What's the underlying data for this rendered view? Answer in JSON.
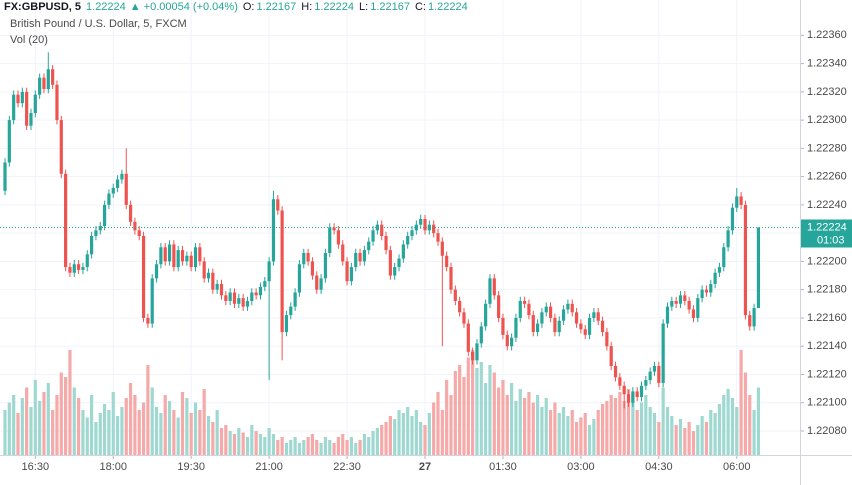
{
  "header": {
    "symbol": "FX:GBPUSD, 5",
    "last": "1.22224",
    "change": "+0.00054 (+0.04%)",
    "o_label": "O:",
    "o_value": "1.22167",
    "h_label": "H:",
    "h_value": "1.22224",
    "l_label": "L:",
    "l_value": "1.22167",
    "c_label": "C:",
    "c_value": "1.22224"
  },
  "chart_data": {
    "type": "candlestick",
    "title": "British Pound / U.S. Dollar, 5, FXCM",
    "volume_label": "Vol (20)",
    "price_label": "1.22224",
    "countdown": "01:03",
    "current_price": 1.22224,
    "up_color": "#26a69a",
    "down_color": "#ef5350",
    "up_volume_color": "#9fd8d1",
    "down_volume_color": "#f5a9a8",
    "grid": true,
    "categories": [
      null,
      null,
      null,
      null,
      null,
      null,
      null,
      "16:30",
      null,
      null,
      null,
      null,
      null,
      null,
      null,
      null,
      null,
      null,
      null,
      null,
      null,
      null,
      null,
      null,
      null,
      "18:00",
      null,
      null,
      null,
      null,
      null,
      null,
      null,
      null,
      null,
      null,
      null,
      null,
      null,
      null,
      null,
      null,
      null,
      "19:30",
      null,
      null,
      null,
      null,
      null,
      null,
      null,
      null,
      null,
      null,
      null,
      null,
      null,
      null,
      null,
      null,
      null,
      "21:00",
      null,
      null,
      null,
      null,
      null,
      null,
      null,
      null,
      null,
      null,
      null,
      null,
      null,
      null,
      null,
      null,
      null,
      "22:30",
      null,
      null,
      null,
      null,
      null,
      null,
      null,
      null,
      null,
      null,
      null,
      null,
      null,
      null,
      null,
      null,
      null,
      "27",
      null,
      null,
      null,
      null,
      null,
      null,
      null,
      null,
      null,
      null,
      null,
      null,
      null,
      null,
      null,
      null,
      null,
      "01:30",
      null,
      null,
      null,
      null,
      null,
      null,
      null,
      null,
      null,
      null,
      null,
      null,
      null,
      null,
      null,
      null,
      null,
      "03:00",
      null,
      null,
      null,
      null,
      null,
      null,
      null,
      null,
      null,
      null,
      null,
      null,
      null,
      null,
      null,
      null,
      null,
      "04:30",
      null,
      null,
      null,
      null,
      null,
      null,
      null,
      null,
      null,
      null,
      null,
      null,
      null,
      null,
      null,
      null,
      null,
      "06:00",
      null,
      null,
      null,
      null,
      null
    ],
    "open": [
      1.2225,
      1.2227,
      1.223,
      1.22318,
      1.22312,
      1.2232,
      1.22296,
      1.22305,
      1.22318,
      1.2233,
      1.22322,
      1.22336,
      1.22325,
      1.223,
      1.22262,
      1.22196,
      1.22192,
      1.22198,
      1.22194,
      1.22196,
      1.22205,
      1.22218,
      1.22222,
      1.22225,
      1.2224,
      1.22248,
      1.22252,
      1.22258,
      1.22262,
      1.2224,
      1.22228,
      1.22222,
      1.22218,
      1.2216,
      1.22156,
      1.22188,
      1.22198,
      1.2221,
      1.222,
      1.22212,
      1.22196,
      1.22208,
      1.222,
      1.22204,
      1.22196,
      1.2221,
      1.222,
      1.22188,
      1.22192,
      1.2218,
      1.22184,
      1.22176,
      1.22172,
      1.22178,
      1.2217,
      1.22174,
      1.22168,
      1.22172,
      1.22178,
      1.22176,
      1.22182,
      1.22186,
      1.222,
      1.22244,
      1.22236,
      1.2215,
      1.22162,
      1.22168,
      1.22178,
      1.22198,
      1.22206,
      1.222,
      1.2219,
      1.2218,
      1.22188,
      1.22206,
      1.22224,
      1.22222,
      1.22212,
      1.222,
      1.22186,
      1.22196,
      1.22206,
      1.222,
      1.22208,
      1.22214,
      1.22222,
      1.22226,
      1.22218,
      1.22208,
      1.2219,
      1.22196,
      1.22202,
      1.22212,
      1.22218,
      1.22222,
      1.22226,
      1.2223,
      1.22222,
      1.22226,
      1.2222,
      1.22214,
      1.22204,
      1.22196,
      1.2218,
      1.22172,
      1.22164,
      1.22156,
      1.22136,
      1.2213,
      1.22142,
      1.22154,
      1.2217,
      1.22188,
      1.22176,
      1.2216,
      1.22148,
      1.2214,
      1.22146,
      1.2216,
      1.22172,
      1.2217,
      1.22162,
      1.2215,
      1.22156,
      1.22164,
      1.22168,
      1.2216,
      1.2215,
      1.22158,
      1.22166,
      1.2217,
      1.22164,
      1.22156,
      1.22152,
      1.22148,
      1.2216,
      1.22164,
      1.22158,
      1.2215,
      1.2214,
      1.22126,
      1.22118,
      1.22112,
      1.22106,
      1.221,
      1.22108,
      1.22104,
      1.22112,
      1.22116,
      1.22122,
      1.22126,
      1.22114,
      1.22156,
      1.22168,
      1.22172,
      1.2217,
      1.22176,
      1.22172,
      1.22166,
      1.2216,
      1.22174,
      1.2218,
      1.22178,
      1.22184,
      1.22192,
      1.22196,
      1.2221,
      1.22222,
      1.22238,
      1.22246,
      1.2224,
      1.22162,
      1.22154,
      1.22167
    ],
    "high": [
      1.22273,
      1.22303,
      1.22321,
      1.22321,
      1.22323,
      1.22323,
      1.22308,
      1.22321,
      1.22333,
      1.22333,
      1.22348,
      1.22339,
      1.22328,
      1.22303,
      1.22265,
      1.22199,
      1.22201,
      1.22201,
      1.22199,
      1.22208,
      1.22221,
      1.22225,
      1.22228,
      1.22243,
      1.22251,
      1.22255,
      1.22261,
      1.22265,
      1.2228,
      1.22243,
      1.22231,
      1.22225,
      1.22221,
      1.22163,
      1.22191,
      1.22201,
      1.22213,
      1.22213,
      1.22215,
      1.22215,
      1.22211,
      1.22211,
      1.22207,
      1.22207,
      1.22213,
      1.22213,
      1.22203,
      1.22195,
      1.22195,
      1.22187,
      1.22187,
      1.22179,
      1.22181,
      1.22181,
      1.22177,
      1.22177,
      1.22175,
      1.22181,
      1.22181,
      1.22185,
      1.22189,
      1.22203,
      1.2225,
      1.22247,
      1.22239,
      1.22165,
      1.22171,
      1.22181,
      1.22201,
      1.22209,
      1.22209,
      1.22203,
      1.22193,
      1.22191,
      1.22209,
      1.22227,
      1.22227,
      1.22225,
      1.22215,
      1.22203,
      1.22199,
      1.22209,
      1.22209,
      1.22211,
      1.22217,
      1.22225,
      1.22229,
      1.22229,
      1.22221,
      1.22211,
      1.22199,
      1.22205,
      1.22215,
      1.22221,
      1.22225,
      1.22229,
      1.22233,
      1.22233,
      1.22229,
      1.22229,
      1.22223,
      1.22217,
      1.22207,
      1.22199,
      1.22183,
      1.22175,
      1.22167,
      1.22159,
      1.22139,
      1.22145,
      1.22157,
      1.22173,
      1.22191,
      1.22191,
      1.22179,
      1.22163,
      1.22151,
      1.22149,
      1.22163,
      1.22175,
      1.22175,
      1.22173,
      1.22165,
      1.22159,
      1.22167,
      1.22171,
      1.22171,
      1.22163,
      1.22161,
      1.22169,
      1.22173,
      1.22173,
      1.22167,
      1.22159,
      1.22155,
      1.22163,
      1.22167,
      1.22167,
      1.22161,
      1.22153,
      1.22143,
      1.22129,
      1.22121,
      1.22115,
      1.22109,
      1.22111,
      1.22111,
      1.22115,
      1.22119,
      1.22125,
      1.22129,
      1.22129,
      1.22159,
      1.22171,
      1.22175,
      1.22175,
      1.22179,
      1.22179,
      1.22175,
      1.22169,
      1.22177,
      1.22183,
      1.22183,
      1.22187,
      1.22195,
      1.22199,
      1.22213,
      1.22225,
      1.22241,
      1.22252,
      1.22249,
      1.22243,
      1.22165,
      1.2217,
      1.22224
    ],
    "low": [
      1.22247,
      1.22267,
      1.22297,
      1.22309,
      1.22309,
      1.22293,
      1.22293,
      1.22302,
      1.22315,
      1.22319,
      1.22319,
      1.22322,
      1.22297,
      1.22259,
      1.22193,
      1.22189,
      1.22189,
      1.22191,
      1.22191,
      1.22193,
      1.22202,
      1.22215,
      1.22219,
      1.22222,
      1.22237,
      1.22245,
      1.22249,
      1.22255,
      1.22237,
      1.22225,
      1.22219,
      1.22215,
      1.22157,
      1.22153,
      1.22153,
      1.22185,
      1.22195,
      1.22197,
      1.22197,
      1.22193,
      1.22193,
      1.22197,
      1.22197,
      1.22193,
      1.22193,
      1.22197,
      1.22185,
      1.22185,
      1.22177,
      1.22177,
      1.22173,
      1.22169,
      1.22169,
      1.22167,
      1.22167,
      1.22165,
      1.22165,
      1.22169,
      1.22173,
      1.22173,
      1.22179,
      1.22116,
      1.22197,
      1.22233,
      1.2213,
      1.22147,
      1.22159,
      1.22165,
      1.22175,
      1.22195,
      1.22197,
      1.22187,
      1.22177,
      1.22177,
      1.22185,
      1.22203,
      1.22219,
      1.22209,
      1.22197,
      1.22183,
      1.22183,
      1.22193,
      1.22197,
      1.22197,
      1.22205,
      1.22211,
      1.22219,
      1.22215,
      1.22205,
      1.22187,
      1.22187,
      1.22193,
      1.22199,
      1.22209,
      1.22215,
      1.22219,
      1.22223,
      1.22219,
      1.22219,
      1.22217,
      1.22211,
      1.2214,
      1.22193,
      1.22177,
      1.22169,
      1.22161,
      1.22153,
      1.22133,
      1.22127,
      1.22127,
      1.22139,
      1.22151,
      1.22167,
      1.22173,
      1.22157,
      1.22145,
      1.22137,
      1.22137,
      1.22143,
      1.22157,
      1.22167,
      1.22159,
      1.22147,
      1.22147,
      1.22153,
      1.22161,
      1.22157,
      1.22147,
      1.22147,
      1.22155,
      1.22163,
      1.22161,
      1.22153,
      1.22149,
      1.22145,
      1.22145,
      1.22157,
      1.22155,
      1.22147,
      1.22137,
      1.22123,
      1.22115,
      1.22109,
      1.22096,
      1.22097,
      1.22097,
      1.22101,
      1.22101,
      1.22109,
      1.22113,
      1.22119,
      1.22111,
      1.22111,
      1.22153,
      1.22165,
      1.22167,
      1.22167,
      1.22169,
      1.22163,
      1.22157,
      1.22157,
      1.22171,
      1.22175,
      1.22175,
      1.22181,
      1.22189,
      1.22193,
      1.22207,
      1.22219,
      1.22235,
      1.22237,
      1.22159,
      1.22151,
      1.22151,
      1.22167
    ],
    "close": [
      1.2227,
      1.223,
      1.22318,
      1.22312,
      1.2232,
      1.22296,
      1.22305,
      1.22318,
      1.2233,
      1.22322,
      1.22336,
      1.22325,
      1.223,
      1.22262,
      1.22196,
      1.22192,
      1.22198,
      1.22194,
      1.22196,
      1.22205,
      1.22218,
      1.22222,
      1.22225,
      1.2224,
      1.22248,
      1.22252,
      1.22258,
      1.22262,
      1.2224,
      1.22228,
      1.22222,
      1.22218,
      1.2216,
      1.22156,
      1.22188,
      1.22198,
      1.2221,
      1.222,
      1.22212,
      1.22196,
      1.22208,
      1.222,
      1.22204,
      1.22196,
      1.2221,
      1.222,
      1.22188,
      1.22192,
      1.2218,
      1.22184,
      1.22176,
      1.22172,
      1.22178,
      1.2217,
      1.22174,
      1.22168,
      1.22172,
      1.22178,
      1.22176,
      1.22182,
      1.22186,
      1.222,
      1.22244,
      1.22236,
      1.2215,
      1.22162,
      1.22168,
      1.22178,
      1.22198,
      1.22206,
      1.222,
      1.2219,
      1.2218,
      1.22188,
      1.22206,
      1.22224,
      1.22222,
      1.22212,
      1.222,
      1.22186,
      1.22196,
      1.22206,
      1.222,
      1.22208,
      1.22214,
      1.22222,
      1.22226,
      1.22218,
      1.22208,
      1.2219,
      1.22196,
      1.22202,
      1.22212,
      1.22218,
      1.22222,
      1.22226,
      1.2223,
      1.22222,
      1.22226,
      1.2222,
      1.22214,
      1.22204,
      1.22196,
      1.2218,
      1.22172,
      1.22164,
      1.22156,
      1.22136,
      1.2213,
      1.22142,
      1.22154,
      1.2217,
      1.22188,
      1.22176,
      1.2216,
      1.22148,
      1.2214,
      1.22146,
      1.2216,
      1.22172,
      1.2217,
      1.22162,
      1.2215,
      1.22156,
      1.22164,
      1.22168,
      1.2216,
      1.2215,
      1.22158,
      1.22166,
      1.2217,
      1.22164,
      1.22156,
      1.22152,
      1.22148,
      1.2216,
      1.22164,
      1.22158,
      1.2215,
      1.2214,
      1.22126,
      1.22118,
      1.22112,
      1.22106,
      1.221,
      1.22108,
      1.22104,
      1.22112,
      1.22116,
      1.22122,
      1.22126,
      1.22114,
      1.22156,
      1.22168,
      1.22172,
      1.2217,
      1.22176,
      1.22172,
      1.22166,
      1.2216,
      1.22174,
      1.2218,
      1.22178,
      1.22184,
      1.22192,
      1.22196,
      1.2221,
      1.22222,
      1.22238,
      1.22246,
      1.2224,
      1.22162,
      1.22154,
      1.22167,
      1.22224
    ],
    "volume": [
      30,
      35,
      40,
      28,
      38,
      45,
      32,
      50,
      36,
      42,
      48,
      30,
      40,
      55,
      52,
      70,
      45,
      38,
      30,
      25,
      40,
      22,
      28,
      34,
      30,
      42,
      26,
      32,
      38,
      48,
      40,
      30,
      35,
      60,
      45,
      32,
      28,
      40,
      36,
      30,
      25,
      42,
      38,
      28,
      35,
      30,
      44,
      26,
      22,
      30,
      18,
      20,
      16,
      14,
      18,
      15,
      12,
      20,
      16,
      14,
      12,
      18,
      14,
      10,
      12,
      8,
      10,
      12,
      8,
      10,
      12,
      14,
      10,
      8,
      12,
      10,
      8,
      12,
      14,
      10,
      12,
      8,
      10,
      14,
      12,
      16,
      18,
      20,
      22,
      26,
      24,
      30,
      28,
      32,
      26,
      30,
      22,
      20,
      28,
      35,
      42,
      30,
      50,
      40,
      56,
      60,
      52,
      65,
      70,
      58,
      62,
      48,
      60,
      55,
      45,
      50,
      40,
      48,
      36,
      44,
      38,
      42,
      35,
      40,
      32,
      38,
      30,
      35,
      28,
      32,
      26,
      30,
      22,
      25,
      28,
      20,
      24,
      30,
      34,
      36,
      40,
      38,
      42,
      36,
      44,
      38,
      30,
      35,
      40,
      32,
      28,
      22,
      45,
      32,
      26,
      20,
      24,
      18,
      22,
      16,
      20,
      26,
      22,
      30,
      28,
      34,
      40,
      44,
      38,
      32,
      70,
      55,
      40,
      30,
      45
    ],
    "ylim": [
      1.22063,
      1.22385
    ],
    "yticks": [
      {
        "value": 1.2208,
        "label": "1.22080"
      },
      {
        "value": 1.221,
        "label": "1.22100"
      },
      {
        "value": 1.2212,
        "label": "1.22120"
      },
      {
        "value": 1.2214,
        "label": "1.22140"
      },
      {
        "value": 1.2216,
        "label": "1.22160"
      },
      {
        "value": 1.2218,
        "label": "1.22180"
      },
      {
        "value": 1.222,
        "label": "1.22200"
      },
      {
        "value": 1.2222,
        "label": "1.22220"
      },
      {
        "value": 1.2224,
        "label": "1.22240"
      },
      {
        "value": 1.2226,
        "label": "1.22260"
      },
      {
        "value": 1.2228,
        "label": "1.22280"
      },
      {
        "value": 1.223,
        "label": "1.22300"
      },
      {
        "value": 1.2232,
        "label": "1.22320"
      },
      {
        "value": 1.2234,
        "label": "1.22340"
      },
      {
        "value": 1.2236,
        "label": "1.22360"
      }
    ]
  }
}
